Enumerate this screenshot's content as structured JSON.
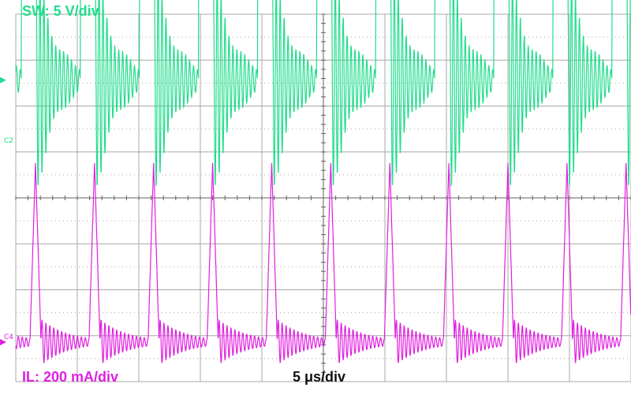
{
  "colors": {
    "background": "#ffffff",
    "grid": "#a8a8a8",
    "channel_sw": "#22dd8c",
    "channel_il": "#e020e0",
    "text_time": "#111111"
  },
  "chart_data": {
    "type": "line",
    "title": "",
    "grid": true,
    "grid_divisions": {
      "x": 10,
      "y": 8
    },
    "time_axis": {
      "label": "5 μs/div",
      "range_us": [
        0,
        50
      ]
    },
    "events_us": [
      0.45,
      5.25,
      10.05,
      14.85,
      19.65,
      24.45,
      29.25,
      34.05,
      38.85,
      43.65,
      48.45
    ],
    "series": [
      {
        "name": "SW",
        "channel_marker": "C2",
        "scale_label": "SW: 5 V/div",
        "volts_per_div": 5,
        "high_level_div": 3.4,
        "low_level_div": 0,
        "high_duration_us": 1.2,
        "ringing_start_amplitude_div": 2.4,
        "ringing_decay_us": 1.6,
        "ringing_period_us": 0.32,
        "ringing_center_div": 1.5,
        "period_us": 4.8
      },
      {
        "name": "IL",
        "channel_marker": "C4",
        "scale_label": "IL: 200 mA/div",
        "ma_per_div": 200,
        "peak_div": 3.9,
        "peak_width_us": 0.9,
        "ringing_start_amplitude_div": 0.5,
        "ringing_decay_us": 2.2,
        "ringing_period_us": 0.32,
        "baseline_div": 0,
        "period_us": 4.8
      }
    ]
  }
}
